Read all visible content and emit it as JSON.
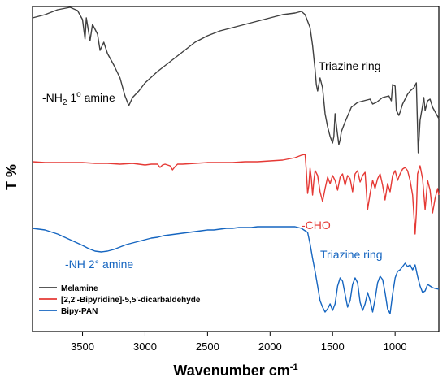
{
  "chart_data": {
    "type": "line",
    "title": "",
    "xlabel": "Wavenumber cm",
    "xlabel_superscript": "-1",
    "ylabel": "T %",
    "xlim": [
      3900,
      650
    ],
    "x_reversed": true,
    "grid": false,
    "x_ticks": [
      "3500",
      "3000",
      "2500",
      "2000",
      "1500",
      "1000"
    ],
    "legend_placement": "bottom-left",
    "series": [
      {
        "name": "Melamine",
        "color": "#404040",
        "points": [
          [
            3900,
            22
          ],
          [
            3800,
            18
          ],
          [
            3700,
            12
          ],
          [
            3600,
            9
          ],
          [
            3540,
            13
          ],
          [
            3500,
            24
          ],
          [
            3480,
            48
          ],
          [
            3470,
            22
          ],
          [
            3440,
            50
          ],
          [
            3420,
            30
          ],
          [
            3380,
            42
          ],
          [
            3360,
            62
          ],
          [
            3330,
            52
          ],
          [
            3300,
            66
          ],
          [
            3250,
            80
          ],
          [
            3200,
            96
          ],
          [
            3160,
            118
          ],
          [
            3130,
            130
          ],
          [
            3100,
            120
          ],
          [
            3050,
            112
          ],
          [
            3000,
            102
          ],
          [
            2900,
            88
          ],
          [
            2800,
            76
          ],
          [
            2700,
            64
          ],
          [
            2600,
            52
          ],
          [
            2500,
            44
          ],
          [
            2400,
            38
          ],
          [
            2300,
            34
          ],
          [
            2200,
            30
          ],
          [
            2100,
            26
          ],
          [
            2000,
            22
          ],
          [
            1900,
            18
          ],
          [
            1800,
            16
          ],
          [
            1750,
            14
          ],
          [
            1720,
            18
          ],
          [
            1680,
            34
          ],
          [
            1660,
            56
          ],
          [
            1640,
            86
          ],
          [
            1630,
            104
          ],
          [
            1620,
            112
          ],
          [
            1600,
            96
          ],
          [
            1580,
            108
          ],
          [
            1560,
            140
          ],
          [
            1540,
            156
          ],
          [
            1520,
            168
          ],
          [
            1500,
            176
          ],
          [
            1490,
            168
          ],
          [
            1480,
            140
          ],
          [
            1465,
            160
          ],
          [
            1450,
            178
          ],
          [
            1440,
            172
          ],
          [
            1430,
            162
          ],
          [
            1400,
            150
          ],
          [
            1350,
            132
          ],
          [
            1300,
            126
          ],
          [
            1250,
            124
          ],
          [
            1200,
            122
          ],
          [
            1180,
            128
          ],
          [
            1150,
            126
          ],
          [
            1100,
            120
          ],
          [
            1050,
            118
          ],
          [
            1030,
            124
          ],
          [
            1020,
            104
          ],
          [
            1000,
            106
          ],
          [
            990,
            136
          ],
          [
            970,
            142
          ],
          [
            960,
            138
          ],
          [
            940,
            128
          ],
          [
            900,
            116
          ],
          [
            880,
            112
          ],
          [
            850,
            108
          ],
          [
            830,
            102
          ],
          [
            815,
            188
          ],
          [
            800,
            148
          ],
          [
            780,
            130
          ],
          [
            770,
            120
          ],
          [
            760,
            136
          ],
          [
            740,
            124
          ],
          [
            720,
            122
          ],
          [
            700,
            132
          ],
          [
            650,
            146
          ]
        ]
      },
      {
        "name": "[2,2'-Bipyridine]-5,5'-dicarbaldehyde",
        "color": "#e53935",
        "points": [
          [
            3900,
            199
          ],
          [
            3800,
            200
          ],
          [
            3700,
            200
          ],
          [
            3600,
            200
          ],
          [
            3500,
            200
          ],
          [
            3400,
            201
          ],
          [
            3300,
            201
          ],
          [
            3200,
            202
          ],
          [
            3100,
            201
          ],
          [
            3050,
            202
          ],
          [
            3000,
            203
          ],
          [
            2950,
            202
          ],
          [
            2900,
            202
          ],
          [
            2880,
            206
          ],
          [
            2860,
            203
          ],
          [
            2840,
            202
          ],
          [
            2800,
            204
          ],
          [
            2780,
            209
          ],
          [
            2760,
            205
          ],
          [
            2740,
            202
          ],
          [
            2700,
            202
          ],
          [
            2600,
            201
          ],
          [
            2500,
            200
          ],
          [
            2400,
            200
          ],
          [
            2300,
            200
          ],
          [
            2200,
            199
          ],
          [
            2100,
            199
          ],
          [
            2000,
            198
          ],
          [
            1900,
            197
          ],
          [
            1800,
            194
          ],
          [
            1750,
            191
          ],
          [
            1720,
            190
          ],
          [
            1710,
            210
          ],
          [
            1700,
            238
          ],
          [
            1690,
            228
          ],
          [
            1680,
            207
          ],
          [
            1670,
            220
          ],
          [
            1660,
            240
          ],
          [
            1650,
            222
          ],
          [
            1640,
            210
          ],
          [
            1620,
            216
          ],
          [
            1600,
            236
          ],
          [
            1580,
            248
          ],
          [
            1560,
            232
          ],
          [
            1540,
            218
          ],
          [
            1520,
            226
          ],
          [
            1500,
            216
          ],
          [
            1480,
            222
          ],
          [
            1460,
            234
          ],
          [
            1440,
            218
          ],
          [
            1420,
            214
          ],
          [
            1400,
            228
          ],
          [
            1380,
            216
          ],
          [
            1360,
            220
          ],
          [
            1340,
            236
          ],
          [
            1320,
            214
          ],
          [
            1300,
            210
          ],
          [
            1280,
            224
          ],
          [
            1260,
            216
          ],
          [
            1240,
            212
          ],
          [
            1220,
            258
          ],
          [
            1200,
            238
          ],
          [
            1180,
            222
          ],
          [
            1160,
            232
          ],
          [
            1140,
            220
          ],
          [
            1120,
            214
          ],
          [
            1100,
            228
          ],
          [
            1080,
            246
          ],
          [
            1060,
            226
          ],
          [
            1040,
            236
          ],
          [
            1020,
            216
          ],
          [
            1000,
            210
          ],
          [
            980,
            222
          ],
          [
            960,
            214
          ],
          [
            940,
            208
          ],
          [
            920,
            206
          ],
          [
            900,
            210
          ],
          [
            880,
            222
          ],
          [
            860,
            240
          ],
          [
            840,
            288
          ],
          [
            830,
            262
          ],
          [
            820,
            214
          ],
          [
            800,
            204
          ],
          [
            780,
            220
          ],
          [
            760,
            258
          ],
          [
            740,
            222
          ],
          [
            720,
            234
          ],
          [
            700,
            262
          ],
          [
            680,
            244
          ],
          [
            660,
            232
          ],
          [
            650,
            240
          ]
        ]
      },
      {
        "name": "Bipy-PAN",
        "color": "#1565c0",
        "points": [
          [
            3900,
            281
          ],
          [
            3800,
            283
          ],
          [
            3700,
            288
          ],
          [
            3600,
            295
          ],
          [
            3500,
            302
          ],
          [
            3450,
            306
          ],
          [
            3400,
            309
          ],
          [
            3350,
            310
          ],
          [
            3300,
            309
          ],
          [
            3250,
            307
          ],
          [
            3200,
            304
          ],
          [
            3150,
            301
          ],
          [
            3100,
            299
          ],
          [
            3050,
            297
          ],
          [
            3000,
            295
          ],
          [
            2950,
            293
          ],
          [
            2900,
            292
          ],
          [
            2850,
            290
          ],
          [
            2800,
            289
          ],
          [
            2750,
            288
          ],
          [
            2700,
            287
          ],
          [
            2650,
            286
          ],
          [
            2600,
            285
          ],
          [
            2550,
            284
          ],
          [
            2500,
            283
          ],
          [
            2450,
            283
          ],
          [
            2400,
            282
          ],
          [
            2350,
            281
          ],
          [
            2300,
            281
          ],
          [
            2250,
            280
          ],
          [
            2200,
            280
          ],
          [
            2150,
            280
          ],
          [
            2100,
            279
          ],
          [
            2050,
            279
          ],
          [
            2000,
            279
          ],
          [
            1950,
            279
          ],
          [
            1900,
            279
          ],
          [
            1850,
            279
          ],
          [
            1800,
            279
          ],
          [
            1750,
            281
          ],
          [
            1700,
            286
          ],
          [
            1680,
            300
          ],
          [
            1660,
            318
          ],
          [
            1640,
            334
          ],
          [
            1620,
            352
          ],
          [
            1600,
            370
          ],
          [
            1580,
            378
          ],
          [
            1560,
            384
          ],
          [
            1540,
            380
          ],
          [
            1520,
            374
          ],
          [
            1500,
            382
          ],
          [
            1480,
            374
          ],
          [
            1460,
            352
          ],
          [
            1440,
            342
          ],
          [
            1420,
            346
          ],
          [
            1400,
            362
          ],
          [
            1380,
            378
          ],
          [
            1360,
            370
          ],
          [
            1340,
            350
          ],
          [
            1320,
            342
          ],
          [
            1300,
            348
          ],
          [
            1280,
            372
          ],
          [
            1260,
            382
          ],
          [
            1240,
            374
          ],
          [
            1220,
            360
          ],
          [
            1200,
            370
          ],
          [
            1180,
            384
          ],
          [
            1160,
            368
          ],
          [
            1140,
            348
          ],
          [
            1120,
            340
          ],
          [
            1100,
            344
          ],
          [
            1080,
            360
          ],
          [
            1060,
            380
          ],
          [
            1040,
            386
          ],
          [
            1020,
            362
          ],
          [
            1000,
            342
          ],
          [
            980,
            334
          ],
          [
            960,
            332
          ],
          [
            940,
            328
          ],
          [
            920,
            324
          ],
          [
            900,
            328
          ],
          [
            880,
            326
          ],
          [
            860,
            332
          ],
          [
            840,
            326
          ],
          [
            820,
            340
          ],
          [
            800,
            352
          ],
          [
            780,
            360
          ],
          [
            760,
            358
          ],
          [
            740,
            350
          ],
          [
            720,
            352
          ],
          [
            700,
            354
          ],
          [
            680,
            355
          ],
          [
            650,
            356
          ]
        ]
      }
    ],
    "annotations": [
      {
        "label_prefix": "-NH",
        "label_sub": "2",
        "label_mid": " 1",
        "label_sup": "o",
        "label_suffix": " amine",
        "color": "#000000"
      },
      {
        "text": "Triazine ring",
        "color": "#000000"
      },
      {
        "text": "-CHO",
        "color": "#e53935"
      },
      {
        "text": "-NH 2° amine",
        "color": "#1565c0"
      },
      {
        "text": "Triazine ring",
        "color": "#1565c0"
      }
    ]
  }
}
